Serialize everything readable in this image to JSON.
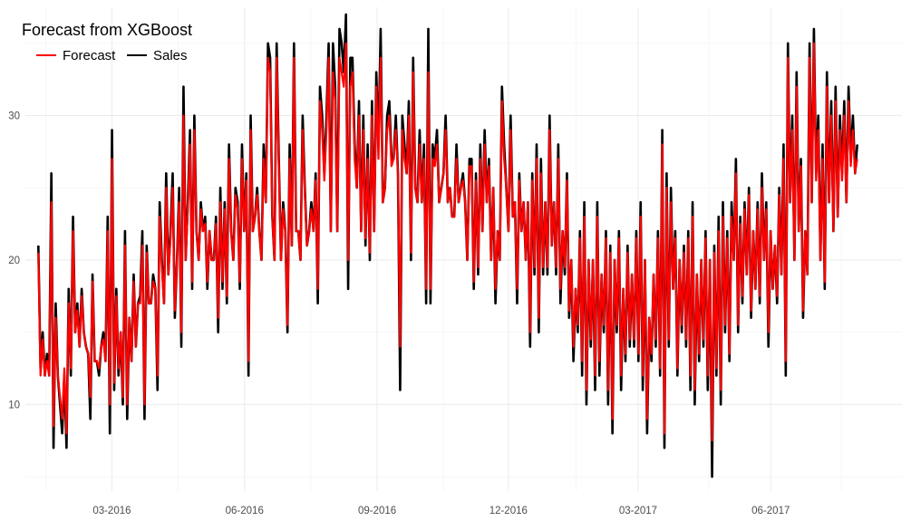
{
  "chart_data": {
    "type": "line",
    "title": "Forecast from XGBoost",
    "xlabel": "",
    "ylabel": "",
    "x_tick_labels": [
      "03-2016",
      "06-2016",
      "09-2016",
      "12-2016",
      "03-2017",
      "06-2017"
    ],
    "y_tick_labels": [
      "10",
      "20",
      "30"
    ],
    "x_ticks": [
      "2016-03-01",
      "2016-06-01",
      "2016-09-01",
      "2016-12-01",
      "2017-03-01",
      "2017-06-01"
    ],
    "y_ticks": [
      10,
      20,
      30
    ],
    "xlim": [
      "2016-01-01",
      "2017-08-31"
    ],
    "ylim": [
      4,
      37.5
    ],
    "grid": true,
    "legend": {
      "placement": "top-left",
      "entries": [
        "Forecast",
        "Sales"
      ]
    },
    "series": [
      {
        "name": "Sales",
        "color": "#000000",
        "x_start": "2016-01-10",
        "x_end": "2017-07-31",
        "values": [
          21,
          12.5,
          15,
          12,
          13.5,
          12,
          26,
          7,
          17,
          12,
          10,
          8,
          12,
          7,
          18,
          12,
          23,
          15,
          17,
          14,
          18,
          15,
          14,
          13.5,
          9,
          19,
          13,
          13,
          12,
          14,
          15,
          13,
          23,
          8,
          29,
          11,
          18,
          12,
          15,
          10,
          22,
          9,
          16,
          13,
          19,
          14,
          17,
          17.5,
          22,
          9,
          21,
          17,
          17,
          19,
          18,
          11,
          24,
          20,
          17,
          26,
          19,
          22,
          26,
          16,
          20,
          25,
          14,
          32,
          20,
          24,
          29,
          18,
          30,
          22,
          20,
          24,
          22,
          23,
          18,
          22,
          20,
          20,
          23,
          15,
          25,
          18,
          24,
          17,
          28,
          22,
          20,
          25,
          24,
          18,
          28,
          22,
          26,
          12,
          30,
          22,
          23,
          25,
          22,
          20,
          28,
          24,
          35,
          34,
          23,
          20,
          35,
          27,
          20,
          24,
          22,
          15,
          28,
          21,
          35,
          22,
          22,
          20,
          30,
          25,
          21,
          22,
          24,
          22,
          26,
          17,
          32,
          30,
          26,
          30,
          35,
          22,
          35,
          32,
          22,
          36,
          35,
          33,
          37,
          18,
          34,
          34,
          28,
          25,
          31,
          22,
          30,
          21,
          28,
          20,
          31,
          22,
          33,
          28,
          36,
          24,
          25,
          30,
          31,
          27,
          27,
          30,
          26,
          11,
          30,
          28,
          26,
          31,
          20,
          34,
          25,
          24,
          29,
          24,
          28,
          17,
          36,
          17,
          28,
          27,
          29,
          24,
          25,
          26,
          30,
          24,
          25,
          23,
          23,
          28,
          24,
          25,
          26,
          24,
          20,
          27,
          27,
          18,
          26,
          19,
          28,
          22,
          29,
          24,
          27,
          20,
          25,
          17,
          22,
          20,
          32,
          28,
          25,
          22,
          30,
          23,
          24,
          17,
          26,
          22,
          24,
          20,
          24,
          14,
          26,
          19,
          28,
          15,
          27,
          19,
          24,
          19,
          30,
          21,
          24,
          19,
          28,
          17,
          22,
          19,
          26,
          16,
          20,
          13,
          18,
          15,
          22,
          12,
          24,
          10,
          20,
          14,
          20,
          11,
          24,
          12,
          19,
          15,
          22,
          10,
          21,
          8,
          20,
          15,
          22,
          11,
          18,
          13,
          21,
          14,
          19,
          14,
          22,
          13,
          24,
          11,
          20,
          8,
          16,
          13,
          19,
          14,
          22,
          12,
          29,
          7,
          26,
          14,
          25,
          18,
          22,
          12,
          20,
          15,
          21,
          14,
          22,
          11,
          24,
          10,
          19,
          13,
          20,
          14,
          22,
          11,
          20,
          5,
          21,
          12,
          23,
          10,
          24,
          15,
          22,
          13,
          24,
          20,
          27,
          15,
          23,
          17,
          24,
          19,
          25,
          16,
          22,
          18,
          24,
          17,
          26,
          20,
          24,
          14,
          22,
          18,
          21,
          17,
          25,
          19,
          28,
          12,
          35,
          24,
          30,
          20,
          33,
          22,
          27,
          16,
          22,
          19,
          35,
          24,
          36,
          26,
          30,
          20,
          28,
          18,
          33,
          24,
          31,
          22,
          32,
          23,
          30,
          26,
          31,
          24,
          32,
          27,
          30,
          26,
          28
        ]
      },
      {
        "name": "Forecast",
        "color": "#ff0000",
        "x_start": "2016-01-10",
        "x_end": "2017-07-31",
        "values": [
          20.5,
          12,
          14.5,
          12,
          13,
          12,
          24,
          8.5,
          16,
          12,
          10.5,
          9,
          12.5,
          8,
          17,
          12.5,
          22,
          15,
          16.5,
          14,
          17.5,
          15,
          14,
          13.5,
          10.5,
          18.5,
          13,
          13,
          12.5,
          14,
          14.5,
          13,
          22,
          10,
          27,
          11.5,
          17.5,
          12.5,
          15,
          10.5,
          21,
          10,
          16,
          13,
          18.5,
          14,
          17,
          17,
          21,
          10,
          20.5,
          17,
          17,
          18.5,
          18,
          12,
          23,
          19.5,
          17,
          25,
          19,
          21.5,
          25,
          16.5,
          20,
          24,
          15,
          30,
          20,
          23.5,
          28,
          18.5,
          29,
          22,
          20,
          23.5,
          22,
          22.5,
          18.5,
          22,
          20,
          20,
          22.5,
          16,
          24,
          18.5,
          23.5,
          17.5,
          27,
          22,
          20,
          24.5,
          23.5,
          18.5,
          27,
          22,
          25.5,
          13,
          29,
          22,
          23,
          24.5,
          22,
          20,
          27,
          24,
          34,
          33,
          23,
          20,
          34,
          26.5,
          20,
          23.5,
          22,
          15.5,
          27,
          21,
          34,
          22,
          22,
          20,
          29,
          24.5,
          21,
          22,
          23.5,
          22,
          25.5,
          18,
          31,
          29,
          25.5,
          29,
          34,
          22,
          33,
          31,
          22,
          34,
          33,
          32,
          35,
          20,
          32,
          33,
          27,
          25,
          30,
          22,
          29,
          21.5,
          27,
          20.5,
          30,
          22,
          32,
          27,
          34,
          24,
          25,
          29,
          30,
          26.5,
          27,
          29,
          26,
          14,
          29,
          27,
          26,
          30,
          20.5,
          33,
          25,
          24,
          28,
          24,
          27,
          18,
          33,
          18,
          27,
          26.5,
          28,
          24,
          25,
          26,
          29,
          24,
          25,
          23,
          23,
          27,
          24,
          25,
          25.5,
          24,
          20,
          26.5,
          26.5,
          18.5,
          25.5,
          19.5,
          27,
          22,
          28,
          24,
          26.5,
          20,
          25,
          18,
          22,
          20,
          31,
          27,
          25,
          22,
          29,
          23,
          24,
          18,
          25.5,
          22,
          24,
          20,
          24,
          15,
          25.5,
          19.5,
          27,
          16,
          26,
          19.5,
          24,
          19.5,
          29,
          21,
          24,
          19.5,
          27,
          18,
          22,
          19.5,
          25.5,
          16.5,
          20,
          14,
          18,
          15.5,
          21.5,
          13,
          23,
          11,
          20,
          14.5,
          20,
          12,
          23,
          13,
          19,
          15.5,
          21.5,
          11,
          20.5,
          9,
          20,
          15.5,
          21.5,
          12,
          18,
          13.5,
          20.5,
          14.5,
          19,
          14.5,
          21.5,
          13.5,
          23,
          12,
          20,
          9,
          16,
          13.5,
          19,
          14.5,
          21.5,
          12.5,
          28,
          8,
          25,
          14.5,
          24,
          18,
          21.5,
          12.5,
          20,
          15.5,
          20.5,
          14.5,
          21.5,
          12,
          23,
          11,
          19,
          13.5,
          20,
          14.5,
          21.5,
          12,
          20,
          7.5,
          20.5,
          12.5,
          22,
          11,
          23,
          15.5,
          21.5,
          13.5,
          23,
          20,
          26,
          15.5,
          22.5,
          17.5,
          23.5,
          19,
          24.5,
          16.5,
          22,
          18,
          23.5,
          17.5,
          25,
          20,
          23.5,
          15,
          22,
          18,
          21,
          17.5,
          24.5,
          19,
          27,
          13,
          34,
          24,
          29,
          20,
          32,
          22,
          26.5,
          16.5,
          22,
          19,
          34,
          24,
          35,
          25.5,
          29,
          20,
          27,
          18.5,
          32,
          24,
          30,
          22,
          31,
          23,
          29,
          25.5,
          30,
          24,
          31,
          26.5,
          29,
          26,
          27
        ]
      }
    ]
  }
}
